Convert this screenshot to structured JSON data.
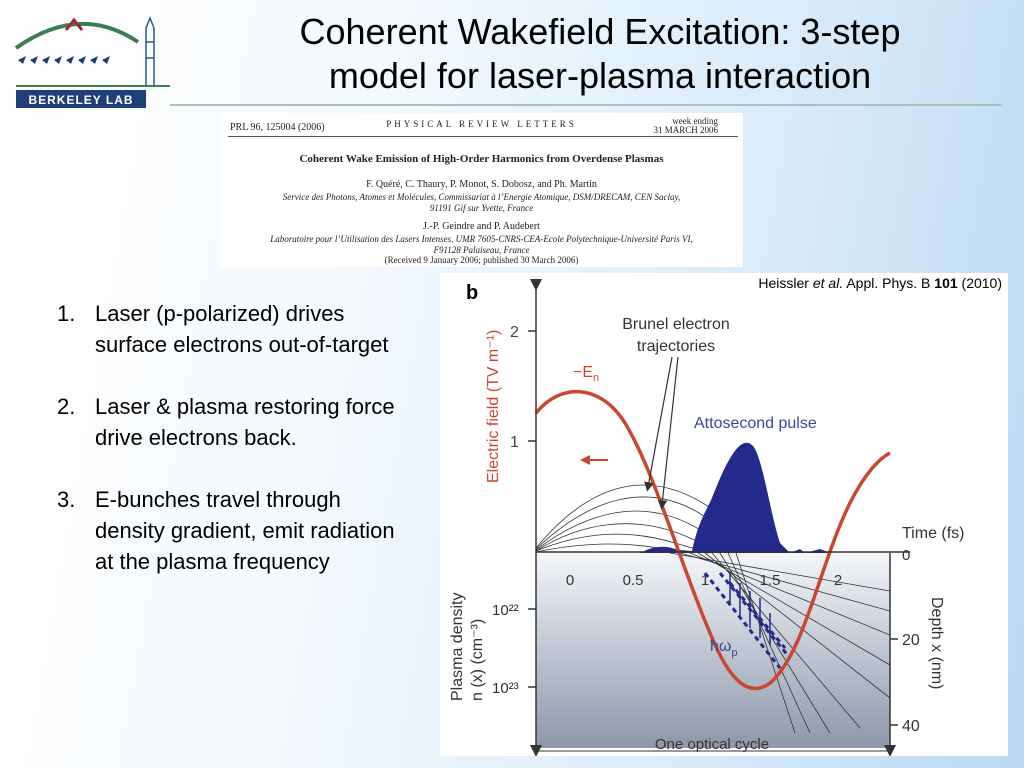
{
  "logo": {
    "text": "BERKELEY LAB"
  },
  "title": {
    "line1": "Coherent Wakefield Excitation: 3-step",
    "line2": "model for laser-plasma interaction"
  },
  "paper": {
    "citation": "PRL 96, 125004 (2006)",
    "journal": "PHYSICAL REVIEW LETTERS",
    "week_label": "week ending",
    "week_date": "31 MARCH 2006",
    "title": "Coherent Wake Emission of High-Order Harmonics from Overdense Plasmas",
    "authors1": "F. Quéré, C. Thaury, P. Monot, S. Dobosz, and Ph. Martin",
    "affil1a": "Service des Photons, Atomes et Molécules, Commissariat à l’Energie Atomique, DSM/DRECAM, CEN Saclay,",
    "affil1b": "91191 Gif sur Yvette, France",
    "authors2": "J.-P. Geindre and P. Audebert",
    "affil2a": "Laboratoire pour l’Utilisation des Lasers Intenses, UMR 7605-CNRS-CEA-Ecole Polytechnique-Université Paris VI,",
    "affil2b": "F91128 Palaiseau, France",
    "received": "(Received 9 January 2006; published 30 March 2006)"
  },
  "steps": [
    {
      "num": "1.",
      "text": "Laser (p-polarized) drives surface electrons out-of-target"
    },
    {
      "num": "2.",
      "text": "Laser & plasma restoring force drive electrons back."
    },
    {
      "num": "3.",
      "text": "E-bunches travel through density gradient, emit radiation at the plasma frequency"
    }
  ],
  "figure": {
    "citation": {
      "author": "Heissler ",
      "etal": "et al.",
      "journal": " Appl. Phys. B ",
      "volume": "101",
      "year": " (2010)"
    },
    "panel_label": "b",
    "y_axis_label": "Electric field (TV m⁻¹)",
    "y_ticks": [
      "2",
      "1"
    ],
    "x_axis_label": "Time (fs)",
    "x_ticks": [
      "0",
      "0.5",
      "1",
      "1.5",
      "2"
    ],
    "origin_label": "0",
    "depth_label": "Depth x (nm)",
    "depth_ticks": [
      "20",
      "40"
    ],
    "density_label_1": "Plasma density",
    "density_label_2": "n (x) (cm⁻³)",
    "density_ticks": [
      "10²²",
      "10²³"
    ],
    "efield_label": "−E",
    "efield_sub": "n",
    "brunel_label_1": "Brunel electron",
    "brunel_label_2": "trajectories",
    "attosecond_label": "Attosecond pulse",
    "plasma_freq_label": "ħω",
    "plasma_freq_sub": "p",
    "cycle_label": "One optical cycle",
    "colors": {
      "efield": "#c8482f",
      "pulse": "#232a8c",
      "axis": "#333333",
      "plasma_top": "#f4f6fa",
      "plasma_bottom": "#8d97aa"
    }
  }
}
